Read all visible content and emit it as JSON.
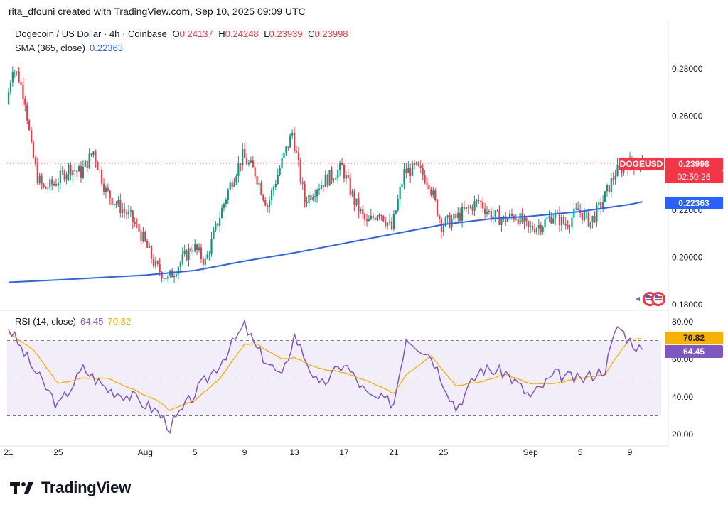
{
  "header": {
    "attribution": "rita_dfouni created with TradingView.com, Sep 10, 2025 09:09 UTC"
  },
  "legend": {
    "symbol": "Dogecoin / US Dollar · 4h · Coinbase",
    "o_label": "O",
    "o_value": "0.24137",
    "h_label": "H",
    "h_value": "0.24248",
    "l_label": "L",
    "l_value": "0.23939",
    "c_label": "C",
    "c_value": "0.23998",
    "sma_label": "SMA (365, close)",
    "sma_value": "0.22363",
    "rsi_label": "RSI (14, close)",
    "rsi_value": "64.45",
    "rsi_ma_value": "70.82"
  },
  "tags": {
    "symbol_tag": "DOGEUSD",
    "last_price": "0.23998",
    "countdown": "02:50:26",
    "sma_tag": "0.22363",
    "rsi_ma_tag": "70.82",
    "rsi_tag": "64.45"
  },
  "footer": {
    "brand": "TradingView"
  },
  "colors": {
    "up": "#089981",
    "down": "#f23645",
    "sma": "#2962ff",
    "rsi": "#7e57c2",
    "rsi_ma": "#f7b100",
    "rsi_band": "#ede7f6"
  },
  "chart_data": {
    "type": "candlestick",
    "title": "Dogecoin / US Dollar · 4h · Coinbase",
    "price_axis": {
      "ticks": [
        "0.28000",
        "0.26000",
        "0.24000",
        "0.22000",
        "0.20000",
        "0.18000"
      ],
      "ylim": [
        0.18,
        0.28
      ]
    },
    "x_axis": {
      "ticks": [
        "21",
        "25",
        "Aug",
        "5",
        "9",
        "13",
        "17",
        "21",
        "25",
        "Sep",
        "5",
        "9"
      ]
    },
    "price_path": [
      [
        "Jul 21",
        0.265
      ],
      [
        "Jul 21.5",
        0.281
      ],
      [
        "Jul 22",
        0.276
      ],
      [
        "Jul 22.5",
        0.267
      ],
      [
        "Jul 23",
        0.246
      ],
      [
        "Jul 23.5",
        0.234
      ],
      [
        "Jul 24",
        0.229
      ],
      [
        "Jul 25",
        0.232
      ],
      [
        "Jul 26",
        0.238
      ],
      [
        "Jul 27",
        0.236
      ],
      [
        "Jul 28",
        0.245
      ],
      [
        "Jul 29",
        0.228
      ],
      [
        "Jul 30",
        0.222
      ],
      [
        "Jul 31",
        0.217
      ],
      [
        "Aug 1",
        0.208
      ],
      [
        "Aug 2",
        0.196
      ],
      [
        "Aug 3",
        0.191
      ],
      [
        "Aug 4",
        0.198
      ],
      [
        "Aug 5",
        0.205
      ],
      [
        "Aug 6",
        0.198
      ],
      [
        "Aug 7",
        0.215
      ],
      [
        "Aug 8",
        0.231
      ],
      [
        "Aug 9",
        0.243
      ],
      [
        "Aug 10",
        0.236
      ],
      [
        "Aug 11",
        0.222
      ],
      [
        "Aug 12",
        0.238
      ],
      [
        "Aug 13",
        0.253
      ],
      [
        "Aug 14",
        0.224
      ],
      [
        "Aug 15",
        0.23
      ],
      [
        "Aug 16",
        0.234
      ],
      [
        "Aug 17",
        0.238
      ],
      [
        "Aug 18",
        0.224
      ],
      [
        "Aug 19",
        0.214
      ],
      [
        "Aug 20",
        0.22
      ],
      [
        "Aug 21",
        0.212
      ],
      [
        "Aug 22",
        0.236
      ],
      [
        "Aug 23",
        0.238
      ],
      [
        "Aug 24",
        0.232
      ],
      [
        "Aug 25",
        0.214
      ],
      [
        "Aug 26",
        0.216
      ],
      [
        "Aug 27",
        0.22
      ],
      [
        "Aug 28",
        0.224
      ],
      [
        "Aug 29",
        0.218
      ],
      [
        "Aug 30",
        0.216
      ],
      [
        "Aug 31",
        0.218
      ],
      [
        "Sep 1",
        0.212
      ],
      [
        "Sep 2",
        0.214
      ],
      [
        "Sep 3",
        0.218
      ],
      [
        "Sep 4",
        0.214
      ],
      [
        "Sep 5",
        0.22
      ],
      [
        "Sep 6",
        0.215
      ],
      [
        "Sep 7",
        0.224
      ],
      [
        "Sep 8",
        0.236
      ],
      [
        "Sep 9",
        0.24
      ],
      [
        "Sep 10",
        0.23998
      ]
    ],
    "sma_365": [
      [
        "Jul 21",
        0.1895
      ],
      [
        "Jul 25",
        0.1905
      ],
      [
        "Aug 1",
        0.1925
      ],
      [
        "Aug 5",
        0.1945
      ],
      [
        "Aug 9",
        0.1985
      ],
      [
        "Aug 13",
        0.202
      ],
      [
        "Aug 17",
        0.206
      ],
      [
        "Aug 21",
        0.21
      ],
      [
        "Aug 25",
        0.214
      ],
      [
        "Aug 29",
        0.2165
      ],
      [
        "Sep 1",
        0.2175
      ],
      [
        "Sep 5",
        0.2195
      ],
      [
        "Sep 9",
        0.2225
      ],
      [
        "Sep 10",
        0.22363
      ]
    ],
    "last_price_line": 0.23998,
    "rsi_panel": {
      "title": "RSI (14, close)",
      "ticks": [
        "80.00",
        "60.00",
        "40.00",
        "20.00"
      ],
      "ylim": [
        20,
        80
      ],
      "bands": [
        30,
        50,
        70
      ],
      "rsi": [
        [
          "Jul 21",
          77
        ],
        [
          "Jul 23",
          55
        ],
        [
          "Jul 25",
          35
        ],
        [
          "Jul 27",
          55
        ],
        [
          "Jul 29",
          44
        ],
        [
          "Jul 31",
          40
        ],
        [
          "Aug 2",
          32
        ],
        [
          "Aug 3",
          24
        ],
        [
          "Aug 5",
          42
        ],
        [
          "Aug 7",
          58
        ],
        [
          "Aug 9",
          78
        ],
        [
          "Aug 10",
          65
        ],
        [
          "Aug 12",
          50
        ],
        [
          "Aug 13",
          73
        ],
        [
          "Aug 15",
          45
        ],
        [
          "Aug 17",
          58
        ],
        [
          "Aug 19",
          40
        ],
        [
          "Aug 21",
          37
        ],
        [
          "Aug 22",
          72
        ],
        [
          "Aug 24",
          62
        ],
        [
          "Aug 26",
          34
        ],
        [
          "Aug 28",
          55
        ],
        [
          "Aug 30",
          53
        ],
        [
          "Sep 1",
          40
        ],
        [
          "Sep 3",
          52
        ],
        [
          "Sep 5",
          49
        ],
        [
          "Sep 7",
          55
        ],
        [
          "Sep 8",
          78
        ],
        [
          "Sep 9",
          70
        ],
        [
          "Sep 10",
          64.45
        ]
      ],
      "rsi_ma": [
        [
          "Jul 21",
          74
        ],
        [
          "Jul 23",
          65
        ],
        [
          "Jul 25",
          47
        ],
        [
          "Jul 27",
          50
        ],
        [
          "Jul 29",
          50
        ],
        [
          "Jul 31",
          44
        ],
        [
          "Aug 2",
          38
        ],
        [
          "Aug 3",
          33
        ],
        [
          "Aug 5",
          38
        ],
        [
          "Aug 7",
          50
        ],
        [
          "Aug 9",
          68
        ],
        [
          "Aug 10",
          68
        ],
        [
          "Aug 12",
          60
        ],
        [
          "Aug 13",
          61
        ],
        [
          "Aug 15",
          55
        ],
        [
          "Aug 17",
          53
        ],
        [
          "Aug 19",
          48
        ],
        [
          "Aug 21",
          42
        ],
        [
          "Aug 22",
          52
        ],
        [
          "Aug 24",
          62
        ],
        [
          "Aug 26",
          46
        ],
        [
          "Aug 28",
          48
        ],
        [
          "Aug 30",
          52
        ],
        [
          "Sep 1",
          47
        ],
        [
          "Sep 3",
          47
        ],
        [
          "Sep 5",
          50
        ],
        [
          "Sep 7",
          52
        ],
        [
          "Sep 8",
          62
        ],
        [
          "Sep 9",
          71
        ],
        [
          "Sep 10",
          70.82
        ]
      ]
    }
  }
}
